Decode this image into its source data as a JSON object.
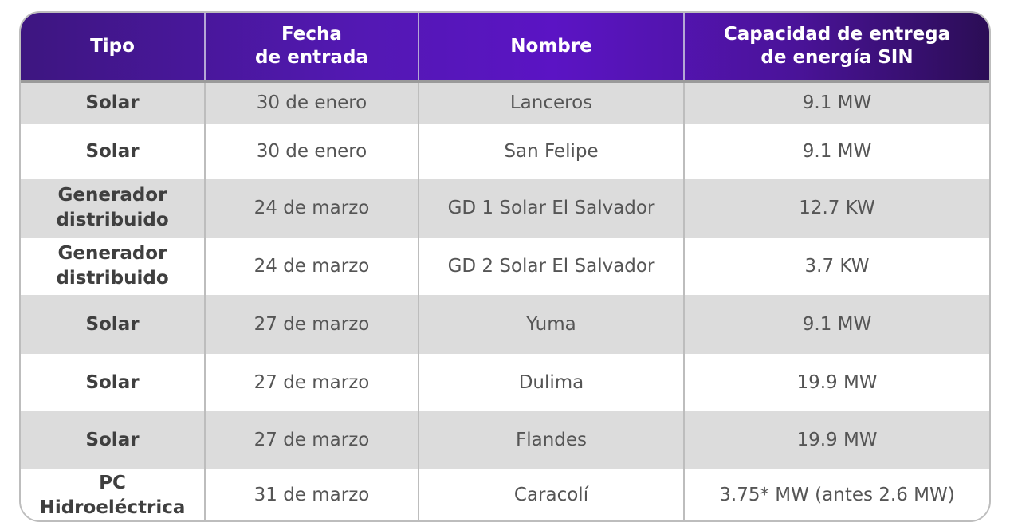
{
  "table": {
    "headers": [
      "Tipo",
      "Fecha\nde entrada",
      "Nombre",
      "Capacidad de entrega\nde energía SIN"
    ],
    "rows": [
      {
        "tipo": "Solar",
        "fecha": "30 de enero",
        "nombre": "Lanceros",
        "capacidad": "9.1 MW"
      },
      {
        "tipo": "Solar",
        "fecha": "30 de enero",
        "nombre": "San Felipe",
        "capacidad": "9.1 MW"
      },
      {
        "tipo": "Generador distribuido",
        "fecha": "24 de marzo",
        "nombre": "GD 1 Solar El Salvador",
        "capacidad": "12.7 KW"
      },
      {
        "tipo": "Generador distribuido",
        "fecha": "24 de marzo",
        "nombre": "GD 2 Solar El Salvador",
        "capacidad": "3.7 KW"
      },
      {
        "tipo": "Solar",
        "fecha": "27 de marzo",
        "nombre": "Yuma",
        "capacidad": "9.1 MW"
      },
      {
        "tipo": "Solar",
        "fecha": "27 de marzo",
        "nombre": "Dulima",
        "capacidad": "19.9 MW"
      },
      {
        "tipo": "Solar",
        "fecha": "27 de marzo",
        "nombre": "Flandes",
        "capacidad": "19.9 MW"
      },
      {
        "tipo": "PC Hidroeléctrica",
        "fecha": "31 de marzo",
        "nombre": "Caracolí",
        "capacidad": "3.75* MW (antes 2.6 MW)"
      }
    ]
  },
  "colors": {
    "header_gradient_start": "#3d1680",
    "header_gradient_mid": "#5b14c4",
    "header_gradient_end": "#2b0d55",
    "row_shaded": "#dcdcdc",
    "row_plain": "#ffffff"
  }
}
